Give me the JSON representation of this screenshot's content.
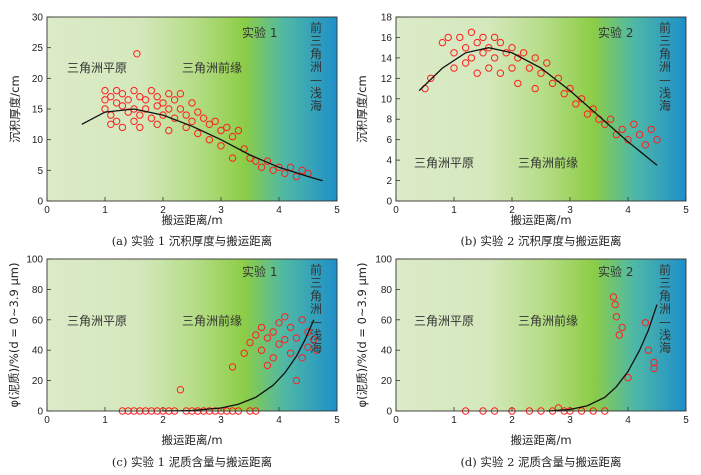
{
  "colors": {
    "marker": "#ff2020",
    "curve": "#111111",
    "bg_left": "#dcebc8",
    "bg_mid": "#8ccd46",
    "bg_right": "#1e8fc9"
  },
  "chart_data": [
    {
      "type": "scatter",
      "title": "",
      "caption": "(a) 实验 1 沉积厚度与搬运距离",
      "xlabel": "搬运距离/m",
      "ylabel": "沉积厚度/cm",
      "xlim": [
        0,
        5
      ],
      "ylim": [
        0,
        30
      ],
      "xticks": [
        "0",
        "1",
        "2",
        "3",
        "4",
        "5"
      ],
      "yticks": [
        "0",
        "5",
        "10",
        "15",
        "20",
        "25",
        "30"
      ],
      "experiment_label": "实验 1",
      "zones": [
        "三角洲平原",
        "三角洲前缘"
      ],
      "vertical_label": [
        "前",
        "三",
        "角",
        "洲",
        "—",
        "浅",
        "海"
      ],
      "points": [
        {
          "x": 1.0,
          "y": 18.0
        },
        {
          "x": 1.0,
          "y": 16.5
        },
        {
          "x": 1.0,
          "y": 15.0
        },
        {
          "x": 1.1,
          "y": 17.0
        },
        {
          "x": 1.1,
          "y": 14.0
        },
        {
          "x": 1.1,
          "y": 12.5
        },
        {
          "x": 1.2,
          "y": 18.0
        },
        {
          "x": 1.2,
          "y": 16.0
        },
        {
          "x": 1.2,
          "y": 13.0
        },
        {
          "x": 1.3,
          "y": 17.5
        },
        {
          "x": 1.3,
          "y": 15.5
        },
        {
          "x": 1.3,
          "y": 12.0
        },
        {
          "x": 1.4,
          "y": 16.5
        },
        {
          "x": 1.4,
          "y": 14.5
        },
        {
          "x": 1.5,
          "y": 18.0
        },
        {
          "x": 1.5,
          "y": 15.0
        },
        {
          "x": 1.5,
          "y": 13.0
        },
        {
          "x": 1.55,
          "y": 24.0
        },
        {
          "x": 1.6,
          "y": 17.0
        },
        {
          "x": 1.6,
          "y": 14.0
        },
        {
          "x": 1.6,
          "y": 12.0
        },
        {
          "x": 1.7,
          "y": 16.5
        },
        {
          "x": 1.7,
          "y": 15.0
        },
        {
          "x": 1.8,
          "y": 18.0
        },
        {
          "x": 1.8,
          "y": 13.5
        },
        {
          "x": 1.9,
          "y": 17.0
        },
        {
          "x": 1.9,
          "y": 15.5
        },
        {
          "x": 1.9,
          "y": 12.5
        },
        {
          "x": 2.0,
          "y": 16.0
        },
        {
          "x": 2.0,
          "y": 14.0
        },
        {
          "x": 2.1,
          "y": 17.5
        },
        {
          "x": 2.1,
          "y": 15.0
        },
        {
          "x": 2.1,
          "y": 11.5
        },
        {
          "x": 2.2,
          "y": 16.5
        },
        {
          "x": 2.2,
          "y": 13.5
        },
        {
          "x": 2.3,
          "y": 17.5
        },
        {
          "x": 2.3,
          "y": 15.0
        },
        {
          "x": 2.4,
          "y": 14.0
        },
        {
          "x": 2.4,
          "y": 12.0
        },
        {
          "x": 2.5,
          "y": 16.0
        },
        {
          "x": 2.5,
          "y": 13.0
        },
        {
          "x": 2.6,
          "y": 14.5
        },
        {
          "x": 2.6,
          "y": 11.0
        },
        {
          "x": 2.7,
          "y": 13.5
        },
        {
          "x": 2.8,
          "y": 12.5
        },
        {
          "x": 2.8,
          "y": 10.0
        },
        {
          "x": 2.9,
          "y": 13.0
        },
        {
          "x": 3.0,
          "y": 11.5
        },
        {
          "x": 3.0,
          "y": 9.0
        },
        {
          "x": 3.1,
          "y": 12.0
        },
        {
          "x": 3.2,
          "y": 10.5
        },
        {
          "x": 3.2,
          "y": 7.0
        },
        {
          "x": 3.3,
          "y": 11.5
        },
        {
          "x": 3.4,
          "y": 8.5
        },
        {
          "x": 3.5,
          "y": 7.0
        },
        {
          "x": 3.6,
          "y": 6.5
        },
        {
          "x": 3.7,
          "y": 5.5
        },
        {
          "x": 3.8,
          "y": 6.5
        },
        {
          "x": 3.9,
          "y": 5.0
        },
        {
          "x": 4.0,
          "y": 5.5
        },
        {
          "x": 4.1,
          "y": 4.5
        },
        {
          "x": 4.2,
          "y": 5.5
        },
        {
          "x": 4.3,
          "y": 4.0
        },
        {
          "x": 4.4,
          "y": 5.0
        },
        {
          "x": 4.5,
          "y": 4.5
        }
      ],
      "fit": {
        "x": [
          0.6,
          1.0,
          1.5,
          2.0,
          2.5,
          3.0,
          3.5,
          4.0,
          4.5,
          4.75
        ],
        "y": [
          12.5,
          14.5,
          15.0,
          14.0,
          12.2,
          10.0,
          7.5,
          5.5,
          4.0,
          3.3
        ]
      }
    },
    {
      "type": "scatter",
      "title": "",
      "caption": "(b) 实验 2 沉积厚度与搬运距离",
      "xlabel": "搬运距离/m",
      "ylabel": "沉积厚度/cm",
      "xlim": [
        0,
        5
      ],
      "ylim": [
        0,
        18
      ],
      "xticks": [
        "0",
        "1",
        "2",
        "3",
        "4",
        "5"
      ],
      "yticks": [
        "0",
        "2",
        "4",
        "6",
        "8",
        "10",
        "12",
        "14",
        "16",
        "18"
      ],
      "experiment_label": "实验 2",
      "zones": [
        "三角洲平原",
        "三角洲前缘"
      ],
      "vertical_label": [
        "前",
        "三",
        "角",
        "洲",
        "—",
        "浅",
        "海"
      ],
      "points": [
        {
          "x": 0.5,
          "y": 11.0
        },
        {
          "x": 0.6,
          "y": 12.0
        },
        {
          "x": 0.8,
          "y": 15.5
        },
        {
          "x": 0.9,
          "y": 16.0
        },
        {
          "x": 1.0,
          "y": 14.5
        },
        {
          "x": 1.0,
          "y": 13.0
        },
        {
          "x": 1.1,
          "y": 16.0
        },
        {
          "x": 1.2,
          "y": 15.0
        },
        {
          "x": 1.2,
          "y": 13.5
        },
        {
          "x": 1.3,
          "y": 16.5
        },
        {
          "x": 1.3,
          "y": 14.0
        },
        {
          "x": 1.4,
          "y": 15.5
        },
        {
          "x": 1.4,
          "y": 12.5
        },
        {
          "x": 1.5,
          "y": 16.0
        },
        {
          "x": 1.5,
          "y": 14.5
        },
        {
          "x": 1.6,
          "y": 15.0
        },
        {
          "x": 1.6,
          "y": 13.0
        },
        {
          "x": 1.7,
          "y": 16.0
        },
        {
          "x": 1.7,
          "y": 14.0
        },
        {
          "x": 1.8,
          "y": 15.5
        },
        {
          "x": 1.8,
          "y": 12.5
        },
        {
          "x": 1.9,
          "y": 14.5
        },
        {
          "x": 2.0,
          "y": 15.0
        },
        {
          "x": 2.0,
          "y": 13.0
        },
        {
          "x": 2.1,
          "y": 14.0
        },
        {
          "x": 2.1,
          "y": 11.5
        },
        {
          "x": 2.2,
          "y": 14.5
        },
        {
          "x": 2.3,
          "y": 13.0
        },
        {
          "x": 2.4,
          "y": 14.0
        },
        {
          "x": 2.4,
          "y": 11.0
        },
        {
          "x": 2.5,
          "y": 12.5
        },
        {
          "x": 2.6,
          "y": 13.5
        },
        {
          "x": 2.7,
          "y": 11.5
        },
        {
          "x": 2.8,
          "y": 12.0
        },
        {
          "x": 2.9,
          "y": 10.5
        },
        {
          "x": 3.0,
          "y": 11.0
        },
        {
          "x": 3.1,
          "y": 9.5
        },
        {
          "x": 3.2,
          "y": 10.0
        },
        {
          "x": 3.3,
          "y": 8.5
        },
        {
          "x": 3.4,
          "y": 9.0
        },
        {
          "x": 3.5,
          "y": 8.0
        },
        {
          "x": 3.6,
          "y": 7.5
        },
        {
          "x": 3.7,
          "y": 8.0
        },
        {
          "x": 3.8,
          "y": 6.5
        },
        {
          "x": 3.9,
          "y": 7.0
        },
        {
          "x": 4.0,
          "y": 6.0
        },
        {
          "x": 4.1,
          "y": 7.5
        },
        {
          "x": 4.2,
          "y": 6.5
        },
        {
          "x": 4.3,
          "y": 5.5
        },
        {
          "x": 4.4,
          "y": 7.0
        },
        {
          "x": 4.5,
          "y": 6.0
        }
      ],
      "fit": {
        "x": [
          0.4,
          0.8,
          1.2,
          1.6,
          2.0,
          2.5,
          3.0,
          3.5,
          4.0,
          4.5
        ],
        "y": [
          10.8,
          13.0,
          14.5,
          15.0,
          14.5,
          13.0,
          10.8,
          8.3,
          5.8,
          3.5
        ]
      }
    },
    {
      "type": "scatter",
      "title": "",
      "caption": "(c) 实验 1 泥质含量与搬运距离",
      "xlabel": "搬运距离/m",
      "ylabel": "φ(泥质)/%(d = 0~3.9 μm)",
      "xlim": [
        0,
        5
      ],
      "ylim": [
        0,
        100
      ],
      "xticks": [
        "0",
        "1",
        "2",
        "3",
        "4",
        "5"
      ],
      "yticks": [
        "0",
        "20",
        "40",
        "60",
        "80",
        "100"
      ],
      "experiment_label": "实验 1",
      "zones": [
        "三角洲平原",
        "三角洲前缘"
      ],
      "vertical_label": [
        "前",
        "三",
        "角",
        "洲",
        "—",
        "浅",
        "海"
      ],
      "points": [
        {
          "x": 1.3,
          "y": 0
        },
        {
          "x": 1.4,
          "y": 0
        },
        {
          "x": 1.5,
          "y": 0
        },
        {
          "x": 1.6,
          "y": 0
        },
        {
          "x": 1.7,
          "y": 0
        },
        {
          "x": 1.8,
          "y": 0
        },
        {
          "x": 1.9,
          "y": 0
        },
        {
          "x": 2.0,
          "y": 0
        },
        {
          "x": 2.1,
          "y": 0
        },
        {
          "x": 2.2,
          "y": 0
        },
        {
          "x": 2.3,
          "y": 14
        },
        {
          "x": 2.4,
          "y": 0
        },
        {
          "x": 2.5,
          "y": 0
        },
        {
          "x": 2.6,
          "y": 0
        },
        {
          "x": 2.7,
          "y": 0
        },
        {
          "x": 2.8,
          "y": 0
        },
        {
          "x": 2.9,
          "y": 0
        },
        {
          "x": 3.0,
          "y": 0
        },
        {
          "x": 3.1,
          "y": 0
        },
        {
          "x": 3.2,
          "y": 0
        },
        {
          "x": 3.2,
          "y": 29
        },
        {
          "x": 3.3,
          "y": 0
        },
        {
          "x": 3.4,
          "y": 38
        },
        {
          "x": 3.5,
          "y": 0
        },
        {
          "x": 3.5,
          "y": 45
        },
        {
          "x": 3.6,
          "y": 0
        },
        {
          "x": 3.6,
          "y": 50
        },
        {
          "x": 3.7,
          "y": 40
        },
        {
          "x": 3.7,
          "y": 55
        },
        {
          "x": 3.8,
          "y": 30
        },
        {
          "x": 3.8,
          "y": 48
        },
        {
          "x": 3.9,
          "y": 52
        },
        {
          "x": 3.9,
          "y": 35
        },
        {
          "x": 4.0,
          "y": 58
        },
        {
          "x": 4.0,
          "y": 44
        },
        {
          "x": 4.1,
          "y": 62
        },
        {
          "x": 4.1,
          "y": 47
        },
        {
          "x": 4.2,
          "y": 55
        },
        {
          "x": 4.2,
          "y": 38
        },
        {
          "x": 4.3,
          "y": 48
        },
        {
          "x": 4.3,
          "y": 20
        },
        {
          "x": 4.4,
          "y": 60
        },
        {
          "x": 4.4,
          "y": 35
        },
        {
          "x": 4.5,
          "y": 52
        },
        {
          "x": 4.5,
          "y": 42
        },
        {
          "x": 4.6,
          "y": 47
        },
        {
          "x": 4.65,
          "y": 40
        }
      ],
      "fit": {
        "x": [
          2.0,
          2.5,
          3.0,
          3.3,
          3.6,
          3.9,
          4.1,
          4.3,
          4.45,
          4.6
        ],
        "y": [
          0,
          0.3,
          2.0,
          4.5,
          9.0,
          17.0,
          25.0,
          36.0,
          47.0,
          60.0
        ]
      }
    },
    {
      "type": "scatter",
      "title": "",
      "caption": "(d) 实验 2 泥质含量与搬运距离",
      "xlabel": "搬运距离/m",
      "ylabel": "φ(泥质)/%(d = 0~3.9 μm)",
      "xlim": [
        0,
        5
      ],
      "ylim": [
        0,
        100
      ],
      "xticks": [
        "0",
        "1",
        "2",
        "3",
        "4",
        "5"
      ],
      "yticks": [
        "0",
        "20",
        "40",
        "60",
        "80",
        "100"
      ],
      "experiment_label": "实验 2",
      "zones": [
        "三角洲平原",
        "三角洲前缘"
      ],
      "vertical_label": [
        "前",
        "三",
        "角",
        "洲",
        "—",
        "浅",
        "海"
      ],
      "points": [
        {
          "x": 1.2,
          "y": 0
        },
        {
          "x": 1.5,
          "y": 0
        },
        {
          "x": 1.7,
          "y": 0
        },
        {
          "x": 2.0,
          "y": 0
        },
        {
          "x": 2.3,
          "y": 0
        },
        {
          "x": 2.5,
          "y": 0
        },
        {
          "x": 2.7,
          "y": 0
        },
        {
          "x": 2.8,
          "y": 2
        },
        {
          "x": 2.9,
          "y": 0
        },
        {
          "x": 3.0,
          "y": 0
        },
        {
          "x": 3.2,
          "y": 0
        },
        {
          "x": 3.4,
          "y": 0
        },
        {
          "x": 3.6,
          "y": 0
        },
        {
          "x": 3.75,
          "y": 75
        },
        {
          "x": 3.78,
          "y": 70
        },
        {
          "x": 3.8,
          "y": 62
        },
        {
          "x": 3.85,
          "y": 50
        },
        {
          "x": 3.9,
          "y": 55
        },
        {
          "x": 4.0,
          "y": 22
        },
        {
          "x": 4.3,
          "y": 58
        },
        {
          "x": 4.35,
          "y": 40
        },
        {
          "x": 4.45,
          "y": 28
        },
        {
          "x": 4.45,
          "y": 32
        }
      ],
      "fit": {
        "x": [
          2.6,
          3.0,
          3.3,
          3.6,
          3.8,
          4.0,
          4.2,
          4.35,
          4.5
        ],
        "y": [
          0,
          1.0,
          3.5,
          9.0,
          16.0,
          26.0,
          40.0,
          53.0,
          70.0
        ]
      }
    }
  ]
}
